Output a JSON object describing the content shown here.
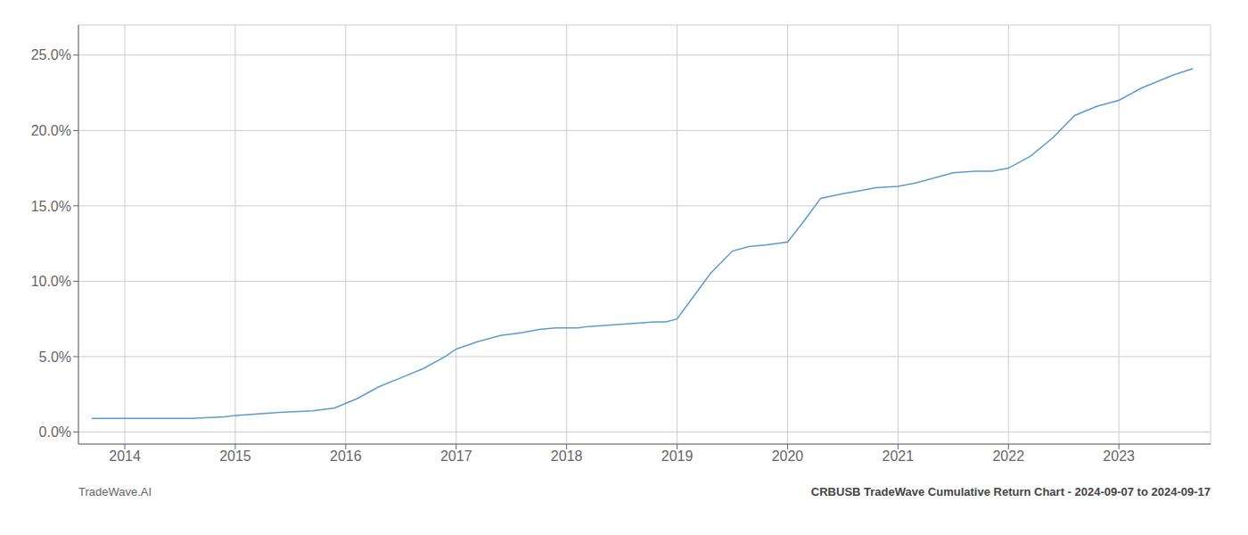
{
  "chart_data": {
    "type": "line",
    "title": "CRBUSB TradeWave Cumulative Return Chart - 2024-09-07 to 2024-09-17",
    "annotations": [
      "TradeWave.AI"
    ],
    "color": "#5b9bd5",
    "grid": true,
    "x": [
      2013.7,
      2014.0,
      2014.3,
      2014.6,
      2014.9,
      2015.0,
      2015.2,
      2015.4,
      2015.7,
      2015.9,
      2016.1,
      2016.3,
      2016.5,
      2016.7,
      2016.9,
      2017.0,
      2017.2,
      2017.4,
      2017.6,
      2017.75,
      2017.9,
      2018.0,
      2018.1,
      2018.2,
      2018.4,
      2018.6,
      2018.8,
      2018.9,
      2019.0,
      2019.15,
      2019.3,
      2019.5,
      2019.65,
      2019.8,
      2020.0,
      2020.15,
      2020.3,
      2020.5,
      2020.65,
      2020.8,
      2021.0,
      2021.15,
      2021.3,
      2021.5,
      2021.7,
      2021.85,
      2022.0,
      2022.2,
      2022.4,
      2022.6,
      2022.8,
      2023.0,
      2023.2,
      2023.5,
      2023.67
    ],
    "values": [
      0.009,
      0.009,
      0.009,
      0.009,
      0.01,
      0.011,
      0.012,
      0.013,
      0.014,
      0.016,
      0.022,
      0.03,
      0.036,
      0.042,
      0.05,
      0.055,
      0.06,
      0.064,
      0.066,
      0.068,
      0.069,
      0.069,
      0.069,
      0.07,
      0.071,
      0.072,
      0.073,
      0.073,
      0.075,
      0.09,
      0.105,
      0.12,
      0.123,
      0.124,
      0.126,
      0.14,
      0.155,
      0.158,
      0.16,
      0.162,
      0.163,
      0.165,
      0.168,
      0.172,
      0.173,
      0.173,
      0.175,
      0.183,
      0.195,
      0.21,
      0.216,
      0.22,
      0.228,
      0.237,
      0.241
    ],
    "xlim": [
      2013.58,
      2023.83
    ],
    "ylim": [
      -0.008,
      0.27
    ],
    "xticks": [
      2014,
      2015,
      2016,
      2017,
      2018,
      2019,
      2020,
      2021,
      2022,
      2023
    ],
    "yticks": [
      {
        "value": 0.0,
        "label": "0.0%"
      },
      {
        "value": 0.05,
        "label": "5.0%"
      },
      {
        "value": 0.1,
        "label": "10.0%"
      },
      {
        "value": 0.15,
        "label": "15.0%"
      },
      {
        "value": 0.2,
        "label": "20.0%"
      },
      {
        "value": 0.25,
        "label": "25.0%"
      }
    ]
  }
}
